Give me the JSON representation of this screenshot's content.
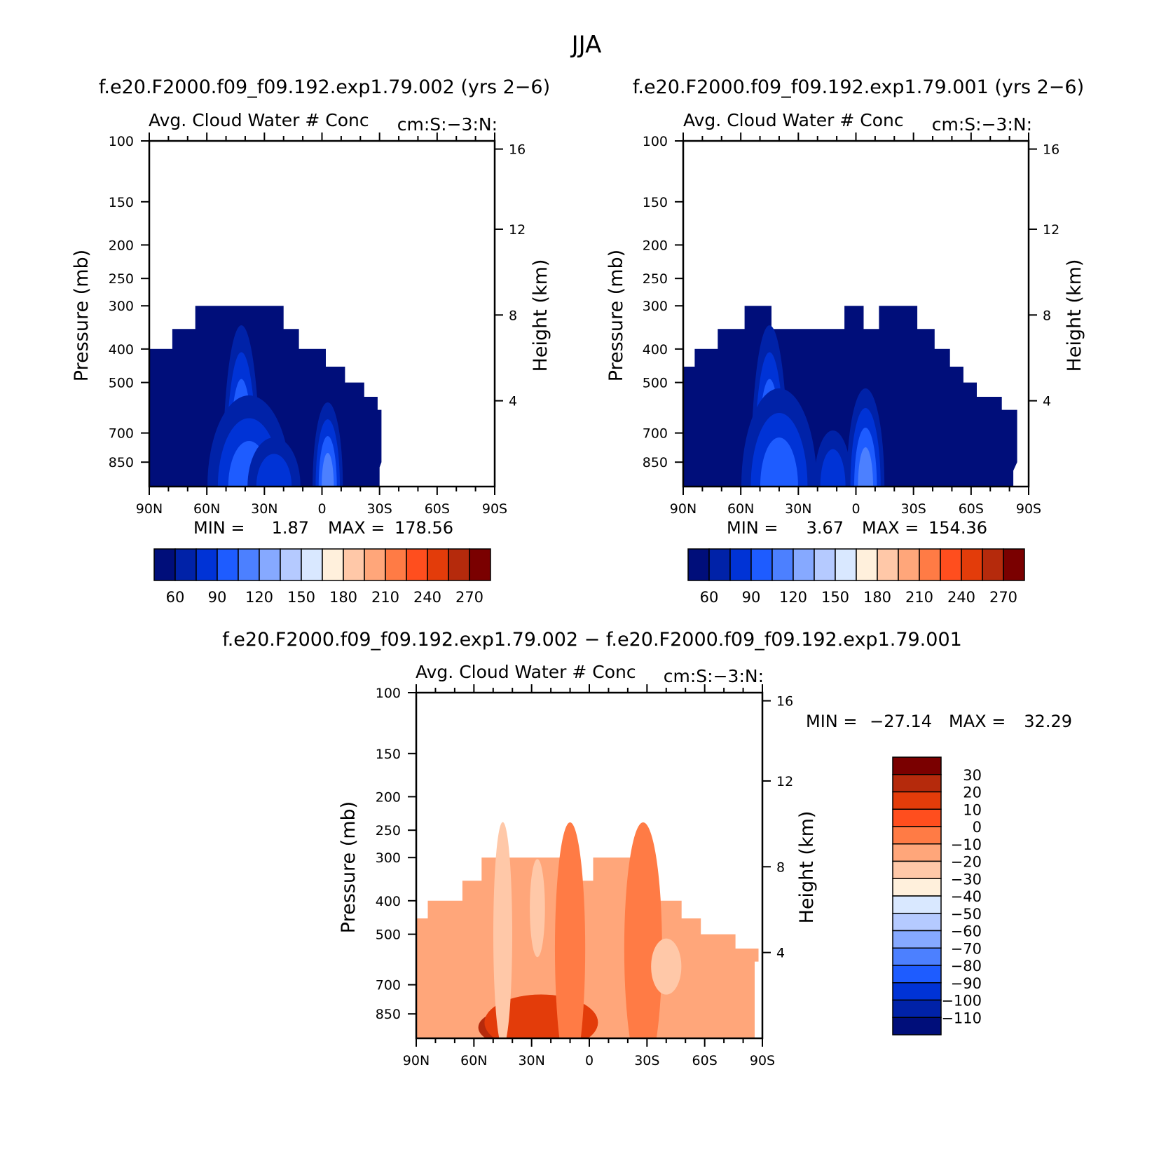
{
  "title": "JJA",
  "colors": {
    "seq": [
      "#000e7a",
      "#0022a8",
      "#0033d6",
      "#1e5cff",
      "#4c80ff",
      "#86a9ff",
      "#b5caff",
      "#d9e8ff",
      "#fff0dc",
      "#ffc8a8",
      "#ffa67a",
      "#ff7b45",
      "#ff4e1e",
      "#e33c0a",
      "#b52a0c",
      "#7a0000"
    ],
    "diff": [
      "#000e7a",
      "#0022a8",
      "#0033d6",
      "#1e5cff",
      "#4c80ff",
      "#86a9ff",
      "#b5caff",
      "#d9e8ff",
      "#fff0dc",
      "#ffc8a8",
      "#ffa67a",
      "#ff7b45",
      "#ff4e1e",
      "#e33c0a",
      "#b52a0c",
      "#7a0000"
    ]
  },
  "chart_data": [
    {
      "type": "heatmap",
      "header": "f.e20.F2000.f09_f09.192.exp1.79.002 (yrs 2−6)",
      "title": "Avg. Cloud Water # Conc",
      "units": "cm:S:−3:N:",
      "xlabel": "",
      "ylabel": "Pressure (mb)",
      "y2label": "Height (km)",
      "xticks": [
        "90N",
        "60N",
        "30N",
        "0",
        "30S",
        "60S",
        "90S"
      ],
      "yticks": [
        100,
        150,
        200,
        250,
        300,
        400,
        500,
        700,
        850
      ],
      "y2ticks": [
        4,
        8,
        12,
        16
      ],
      "ylim": [
        1000,
        100
      ],
      "min_label": "MIN =",
      "min_value": "1.87",
      "max_label": "MAX =",
      "max_value": "178.56",
      "colorbar_labels": [
        "60",
        "90",
        "120",
        "150",
        "180",
        "210",
        "240",
        "270"
      ],
      "top_edge": [
        [
          90,
          400
        ],
        [
          78,
          400
        ],
        [
          78,
          350
        ],
        [
          66,
          350
        ],
        [
          66,
          300
        ],
        [
          20,
          300
        ],
        [
          20,
          350
        ],
        [
          12,
          350
        ],
        [
          12,
          400
        ],
        [
          -2,
          400
        ],
        [
          -2,
          450
        ],
        [
          -12,
          450
        ],
        [
          -12,
          500
        ],
        [
          -22,
          500
        ],
        [
          -22,
          550
        ],
        [
          -29,
          550
        ],
        [
          -29,
          600
        ],
        [
          -31,
          600
        ],
        [
          -31,
          850
        ],
        [
          -30,
          880
        ],
        [
          -30,
          1000
        ],
        [
          90,
          1000
        ]
      ],
      "plumes": [
        {
          "lat": 42,
          "level": 5,
          "w": 10,
          "h": 230
        },
        {
          "lat": 38,
          "level": 3,
          "w": 22,
          "h": 130
        },
        {
          "lat": 25,
          "level": 2,
          "w": 14,
          "h": 70
        },
        {
          "lat": -3,
          "level": 4,
          "w": 8,
          "h": 120
        }
      ]
    },
    {
      "type": "heatmap",
      "header": "f.e20.F2000.f09_f09.192.exp1.79.001 (yrs 2−6)",
      "title": "Avg. Cloud Water # Conc",
      "units": "cm:S:−3:N:",
      "xlabel": "",
      "ylabel": "Pressure (mb)",
      "y2label": "Height (km)",
      "xticks": [
        "90N",
        "60N",
        "30N",
        "0",
        "30S",
        "60S",
        "90S"
      ],
      "yticks": [
        100,
        150,
        200,
        250,
        300,
        400,
        500,
        700,
        850
      ],
      "y2ticks": [
        4,
        8,
        12,
        16
      ],
      "ylim": [
        1000,
        100
      ],
      "min_label": "MIN =",
      "min_value": "3.67",
      "max_label": "MAX =",
      "max_value": "154.36",
      "colorbar_labels": [
        "60",
        "90",
        "120",
        "150",
        "180",
        "210",
        "240",
        "270"
      ],
      "top_edge": [
        [
          90,
          450
        ],
        [
          84,
          450
        ],
        [
          84,
          400
        ],
        [
          72,
          400
        ],
        [
          72,
          350
        ],
        [
          58,
          350
        ],
        [
          58,
          300
        ],
        [
          44,
          300
        ],
        [
          44,
          350
        ],
        [
          6,
          350
        ],
        [
          6,
          300
        ],
        [
          -4,
          300
        ],
        [
          -4,
          350
        ],
        [
          -12,
          350
        ],
        [
          -12,
          300
        ],
        [
          -32,
          300
        ],
        [
          -32,
          350
        ],
        [
          -41,
          350
        ],
        [
          -41,
          400
        ],
        [
          -49,
          400
        ],
        [
          -49,
          450
        ],
        [
          -56,
          450
        ],
        [
          -56,
          500
        ],
        [
          -63,
          500
        ],
        [
          -63,
          550
        ],
        [
          -76,
          550
        ],
        [
          -76,
          600
        ],
        [
          -84,
          600
        ],
        [
          -84,
          850
        ],
        [
          -82,
          900
        ],
        [
          -82,
          1000
        ],
        [
          90,
          1000
        ]
      ],
      "plumes": [
        {
          "lat": 45,
          "level": 5,
          "w": 10,
          "h": 230
        },
        {
          "lat": 40,
          "level": 3,
          "w": 20,
          "h": 140
        },
        {
          "lat": 12,
          "level": 2,
          "w": 10,
          "h": 80
        },
        {
          "lat": -5,
          "level": 4,
          "w": 10,
          "h": 140
        }
      ]
    },
    {
      "type": "heatmap",
      "header": "f.e20.F2000.f09_f09.192.exp1.79.002 − f.e20.F2000.f09_f09.192.exp1.79.001",
      "title": "Avg. Cloud Water # Conc",
      "units": "cm:S:−3:N:",
      "xlabel": "",
      "ylabel": "Pressure (mb)",
      "y2label": "Height (km)",
      "xticks": [
        "90N",
        "60N",
        "30N",
        "0",
        "30S",
        "60S",
        "90S"
      ],
      "yticks": [
        100,
        150,
        200,
        250,
        300,
        400,
        500,
        700,
        850
      ],
      "y2ticks": [
        4,
        8,
        12,
        16
      ],
      "ylim": [
        1000,
        100
      ],
      "min_label": "MIN =",
      "min_value": "−27.14",
      "max_label": "MAX =",
      "max_value": "32.29",
      "colorbar_labels": [
        "30",
        "20",
        "10",
        "0",
        "−10",
        "−20",
        "−30",
        "−40",
        "−50",
        "−60",
        "−70",
        "−80",
        "−90",
        "−100",
        "−110"
      ],
      "top_edge": [
        [
          90,
          450
        ],
        [
          84,
          450
        ],
        [
          84,
          400
        ],
        [
          66,
          400
        ],
        [
          66,
          350
        ],
        [
          56,
          350
        ],
        [
          56,
          300
        ],
        [
          6,
          300
        ],
        [
          6,
          350
        ],
        [
          -2,
          350
        ],
        [
          -2,
          300
        ],
        [
          -26,
          300
        ],
        [
          -26,
          350
        ],
        [
          -36,
          350
        ],
        [
          -36,
          400
        ],
        [
          -48,
          400
        ],
        [
          -48,
          450
        ],
        [
          -58,
          450
        ],
        [
          -58,
          500
        ],
        [
          -76,
          500
        ],
        [
          -76,
          550
        ],
        [
          -88,
          550
        ],
        [
          -88,
          600
        ],
        [
          -86,
          600
        ],
        [
          -86,
          1000
        ],
        [
          90,
          1000
        ]
      ],
      "patches": [
        {
          "lat": 40,
          "p": 930,
          "w": 18,
          "h": 25,
          "color": "#b52a0c"
        },
        {
          "lat": 25,
          "p": 900,
          "w": 30,
          "h": 40,
          "color": "#e33c0a"
        },
        {
          "lat": 10,
          "p": 550,
          "w": 8,
          "h": 180,
          "color": "#ff7b45"
        },
        {
          "lat": -28,
          "p": 550,
          "w": 10,
          "h": 180,
          "color": "#ff7b45"
        },
        {
          "lat": 45,
          "p": 500,
          "w": 5,
          "h": 160,
          "color": "#ffc8a8"
        },
        {
          "lat": -40,
          "p": 620,
          "w": 8,
          "h": 40,
          "color": "#ffc8a8"
        },
        {
          "lat": 27,
          "p": 420,
          "w": 4,
          "h": 70,
          "color": "#ffc8a8"
        }
      ]
    }
  ]
}
